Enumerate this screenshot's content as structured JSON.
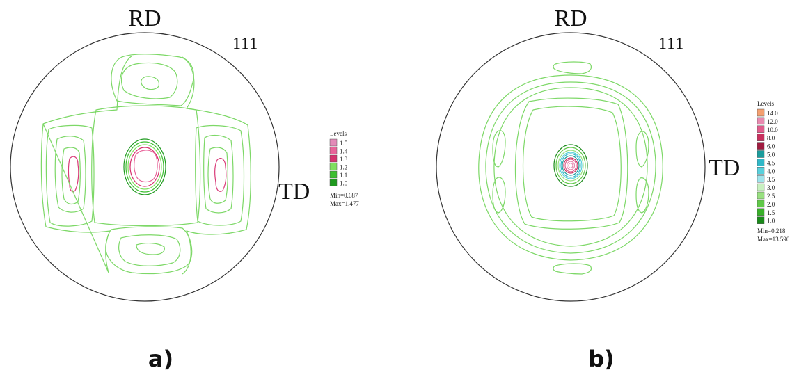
{
  "panels": [
    {
      "id": "a",
      "caption": "a)",
      "direction_top": "RD",
      "direction_right": "TD",
      "plane": "111",
      "legend": {
        "title": "Levels",
        "levels": [
          {
            "label": "1.5",
            "color": "#e38ab8"
          },
          {
            "label": "1.4",
            "color": "#e8649a"
          },
          {
            "label": "1.3",
            "color": "#d6336f"
          },
          {
            "label": "1.2",
            "color": "#80e060"
          },
          {
            "label": "1.1",
            "color": "#3cbf30"
          },
          {
            "label": "1.0",
            "color": "#1f9a1f"
          }
        ],
        "min": "Min=0.687",
        "max": "Max=1.477"
      }
    },
    {
      "id": "b",
      "caption": "b)",
      "direction_top": "RD",
      "direction_right": "TD",
      "plane": "111",
      "legend": {
        "title": "Levels",
        "levels": [
          {
            "label": "14.0",
            "color": "#f4a070"
          },
          {
            "label": "12.0",
            "color": "#e88ab0"
          },
          {
            "label": "10.0",
            "color": "#e05c8c"
          },
          {
            "label": "8.0",
            "color": "#c8305e"
          },
          {
            "label": "6.0",
            "color": "#a01c40"
          },
          {
            "label": "5.0",
            "color": "#1a9c9c"
          },
          {
            "label": "4.5",
            "color": "#30b8c8"
          },
          {
            "label": "4.0",
            "color": "#58d0dc"
          },
          {
            "label": "3.5",
            "color": "#a0e4ec"
          },
          {
            "label": "3.0",
            "color": "#c8f0c0"
          },
          {
            "label": "2.5",
            "color": "#98e080"
          },
          {
            "label": "2.0",
            "color": "#60c848"
          },
          {
            "label": "1.5",
            "color": "#38b028"
          },
          {
            "label": "1.0",
            "color": "#1a8a1a"
          }
        ],
        "min": "Min=0.218",
        "max": "Max=13.590"
      }
    }
  ]
}
